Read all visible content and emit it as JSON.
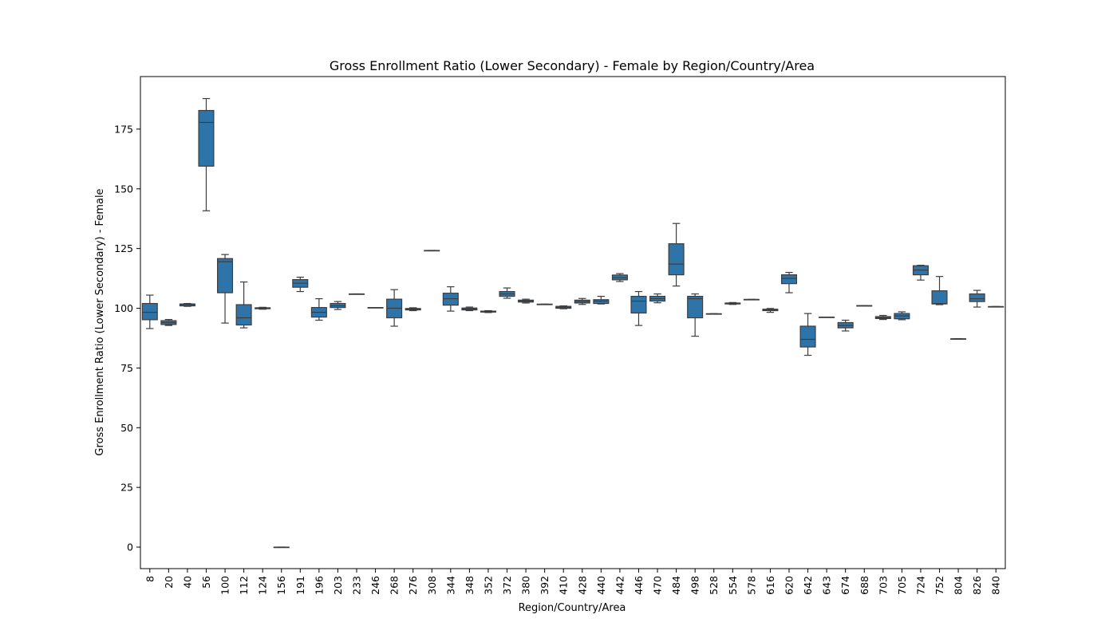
{
  "chart_data": {
    "type": "box",
    "title": "Gross Enrollment Ratio (Lower Secondary) - Female by Region/Country/Area",
    "xlabel": "Region/Country/Area",
    "ylabel": "Gross Enrollment Ratio (Lower Secondary) - Female",
    "ylim": [
      -9,
      197
    ],
    "yticks": [
      0,
      25,
      50,
      75,
      100,
      125,
      150,
      175
    ],
    "grid": false,
    "legend": "none",
    "box_color": "#2f74a8",
    "line_color": "#3d3d3d",
    "categories": [
      "8",
      "20",
      "40",
      "56",
      "100",
      "112",
      "124",
      "156",
      "191",
      "196",
      "203",
      "233",
      "246",
      "268",
      "276",
      "308",
      "344",
      "348",
      "352",
      "372",
      "380",
      "392",
      "410",
      "428",
      "440",
      "442",
      "446",
      "470",
      "484",
      "498",
      "528",
      "554",
      "578",
      "616",
      "620",
      "642",
      "643",
      "674",
      "688",
      "703",
      "705",
      "724",
      "752",
      "804",
      "826",
      "840"
    ],
    "boxes": [
      {
        "min": 91.5,
        "q1": 95.2,
        "median": 98.3,
        "q3": 102.0,
        "max": 105.5
      },
      {
        "min": 92.8,
        "q1": 93.2,
        "median": 94.0,
        "q3": 94.8,
        "max": 95.3
      },
      {
        "min": 100.8,
        "q1": 101.0,
        "median": 101.5,
        "q3": 101.8,
        "max": 102.0
      },
      {
        "min": 140.8,
        "q1": 159.5,
        "median": 177.8,
        "q3": 182.8,
        "max": 187.8
      },
      {
        "min": 93.8,
        "q1": 106.5,
        "median": 119.5,
        "q3": 120.8,
        "max": 122.5
      },
      {
        "min": 91.8,
        "q1": 93.0,
        "median": 96.0,
        "q3": 101.5,
        "max": 111.0
      },
      {
        "min": 99.6,
        "q1": 99.8,
        "median": 100.0,
        "q3": 100.2,
        "max": 100.4
      },
      {
        "min": 0.0,
        "q1": 0.0,
        "median": 0.0,
        "q3": 0.0,
        "max": 0.0
      },
      {
        "min": 107.0,
        "q1": 108.8,
        "median": 110.5,
        "q3": 112.0,
        "max": 113.0
      },
      {
        "min": 95.0,
        "q1": 96.3,
        "median": 98.3,
        "q3": 100.3,
        "max": 104.0
      },
      {
        "min": 99.5,
        "q1": 100.3,
        "median": 101.0,
        "q3": 102.0,
        "max": 102.8
      },
      {
        "min": 106.0,
        "q1": 106.0,
        "median": 106.0,
        "q3": 106.0,
        "max": 106.0
      },
      {
        "min": 100.3,
        "q1": 100.3,
        "median": 100.3,
        "q3": 100.3,
        "max": 100.3
      },
      {
        "min": 92.5,
        "q1": 96.0,
        "median": 100.0,
        "q3": 103.8,
        "max": 107.8
      },
      {
        "min": 99.0,
        "q1": 99.3,
        "median": 99.6,
        "q3": 99.9,
        "max": 100.2
      },
      {
        "min": 124.2,
        "q1": 124.2,
        "median": 124.2,
        "q3": 124.2,
        "max": 124.2
      },
      {
        "min": 98.8,
        "q1": 101.3,
        "median": 104.0,
        "q3": 106.3,
        "max": 109.0
      },
      {
        "min": 99.0,
        "q1": 99.3,
        "median": 99.7,
        "q3": 100.1,
        "max": 100.5
      },
      {
        "min": 98.2,
        "q1": 98.4,
        "median": 98.6,
        "q3": 98.8,
        "max": 99.0
      },
      {
        "min": 104.2,
        "q1": 105.0,
        "median": 106.0,
        "q3": 107.0,
        "max": 108.5
      },
      {
        "min": 102.2,
        "q1": 102.6,
        "median": 103.0,
        "q3": 103.4,
        "max": 103.8
      },
      {
        "min": 101.7,
        "q1": 101.7,
        "median": 101.7,
        "q3": 101.7,
        "max": 101.7
      },
      {
        "min": 99.8,
        "q1": 100.0,
        "median": 100.4,
        "q3": 100.8,
        "max": 101.0
      },
      {
        "min": 101.6,
        "q1": 102.2,
        "median": 102.8,
        "q3": 103.4,
        "max": 104.1
      },
      {
        "min": 101.8,
        "q1": 102.0,
        "median": 103.0,
        "q3": 103.6,
        "max": 105.0
      },
      {
        "min": 111.2,
        "q1": 111.9,
        "median": 112.8,
        "q3": 113.9,
        "max": 114.5
      },
      {
        "min": 92.8,
        "q1": 98.0,
        "median": 103.0,
        "q3": 105.0,
        "max": 107.0
      },
      {
        "min": 102.3,
        "q1": 103.0,
        "median": 104.0,
        "q3": 105.0,
        "max": 106.0
      },
      {
        "min": 109.3,
        "q1": 114.0,
        "median": 118.5,
        "q3": 127.0,
        "max": 135.5
      },
      {
        "min": 88.3,
        "q1": 96.0,
        "median": 104.0,
        "q3": 105.0,
        "max": 106.0
      },
      {
        "min": 97.7,
        "q1": 97.7,
        "median": 97.7,
        "q3": 97.7,
        "max": 97.7
      },
      {
        "min": 101.6,
        "q1": 101.8,
        "median": 102.0,
        "q3": 102.2,
        "max": 102.4
      },
      {
        "min": 103.7,
        "q1": 103.7,
        "median": 103.7,
        "q3": 103.7,
        "max": 103.7
      },
      {
        "min": 98.3,
        "q1": 99.0,
        "median": 99.3,
        "q3": 99.6,
        "max": 99.9
      },
      {
        "min": 106.5,
        "q1": 110.3,
        "median": 112.5,
        "q3": 114.0,
        "max": 115.0
      },
      {
        "min": 80.3,
        "q1": 83.8,
        "median": 87.0,
        "q3": 92.5,
        "max": 97.8
      },
      {
        "min": 96.3,
        "q1": 96.3,
        "median": 96.3,
        "q3": 96.3,
        "max": 96.3
      },
      {
        "min": 90.5,
        "q1": 91.8,
        "median": 92.8,
        "q3": 94.0,
        "max": 95.0
      },
      {
        "min": 101.1,
        "q1": 101.1,
        "median": 101.1,
        "q3": 101.1,
        "max": 101.1
      },
      {
        "min": 95.3,
        "q1": 95.7,
        "median": 96.0,
        "q3": 96.5,
        "max": 97.0
      },
      {
        "min": 95.2,
        "q1": 95.6,
        "median": 96.8,
        "q3": 97.8,
        "max": 98.5
      },
      {
        "min": 111.8,
        "q1": 114.0,
        "median": 116.0,
        "q3": 117.8,
        "max": 118.0
      },
      {
        "min": 101.5,
        "q1": 101.8,
        "median": 102.0,
        "q3": 107.3,
        "max": 113.3
      },
      {
        "min": 87.2,
        "q1": 87.2,
        "median": 87.2,
        "q3": 87.2,
        "max": 87.2
      },
      {
        "min": 100.5,
        "q1": 102.8,
        "median": 104.0,
        "q3": 106.0,
        "max": 107.5
      },
      {
        "min": 100.7,
        "q1": 100.7,
        "median": 100.7,
        "q3": 100.7,
        "max": 100.7
      }
    ]
  }
}
